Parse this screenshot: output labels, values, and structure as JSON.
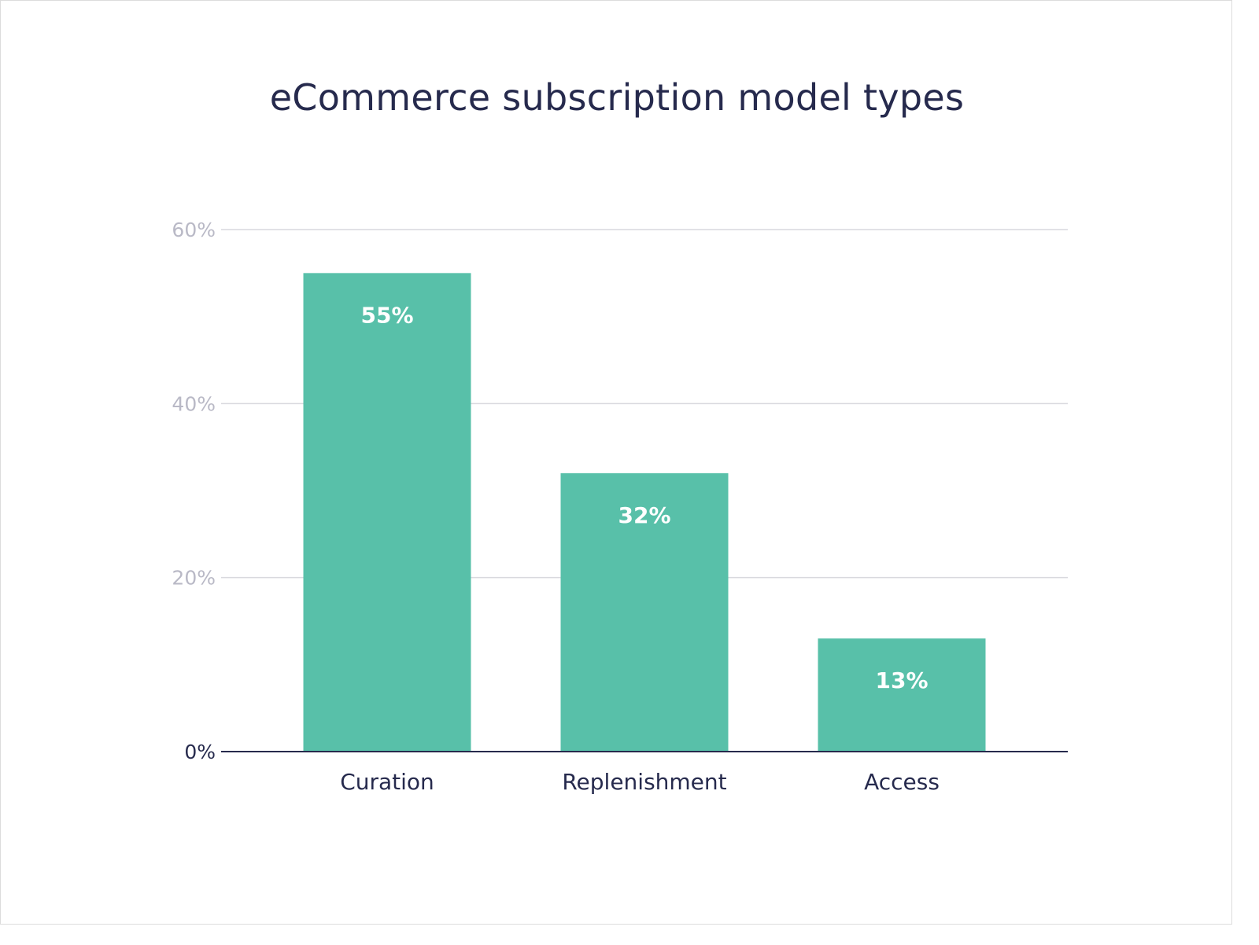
{
  "chart_data": {
    "type": "bar",
    "title": "eCommerce subscription model types",
    "categories": [
      "Curation",
      "Replenishment",
      "Access"
    ],
    "values": [
      55,
      32,
      13
    ],
    "value_labels": [
      "55%",
      "32%",
      "13%"
    ],
    "ylim": [
      0,
      60
    ],
    "y_ticks": [
      0,
      20,
      40,
      60
    ],
    "y_tick_labels": [
      "0%",
      "20%",
      "40%",
      "60%"
    ],
    "xlabel": "",
    "ylabel": "",
    "grid": true,
    "legend": "none",
    "colors": {
      "bar": "#58c0a9",
      "title": "#262a4d",
      "axis": "#262a4d",
      "grid": "#d9d9de",
      "tick_label": "#b9b9c6",
      "zero_label": "#262a4d",
      "category_label": "#262a4d",
      "value_label": "#ffffff"
    }
  }
}
